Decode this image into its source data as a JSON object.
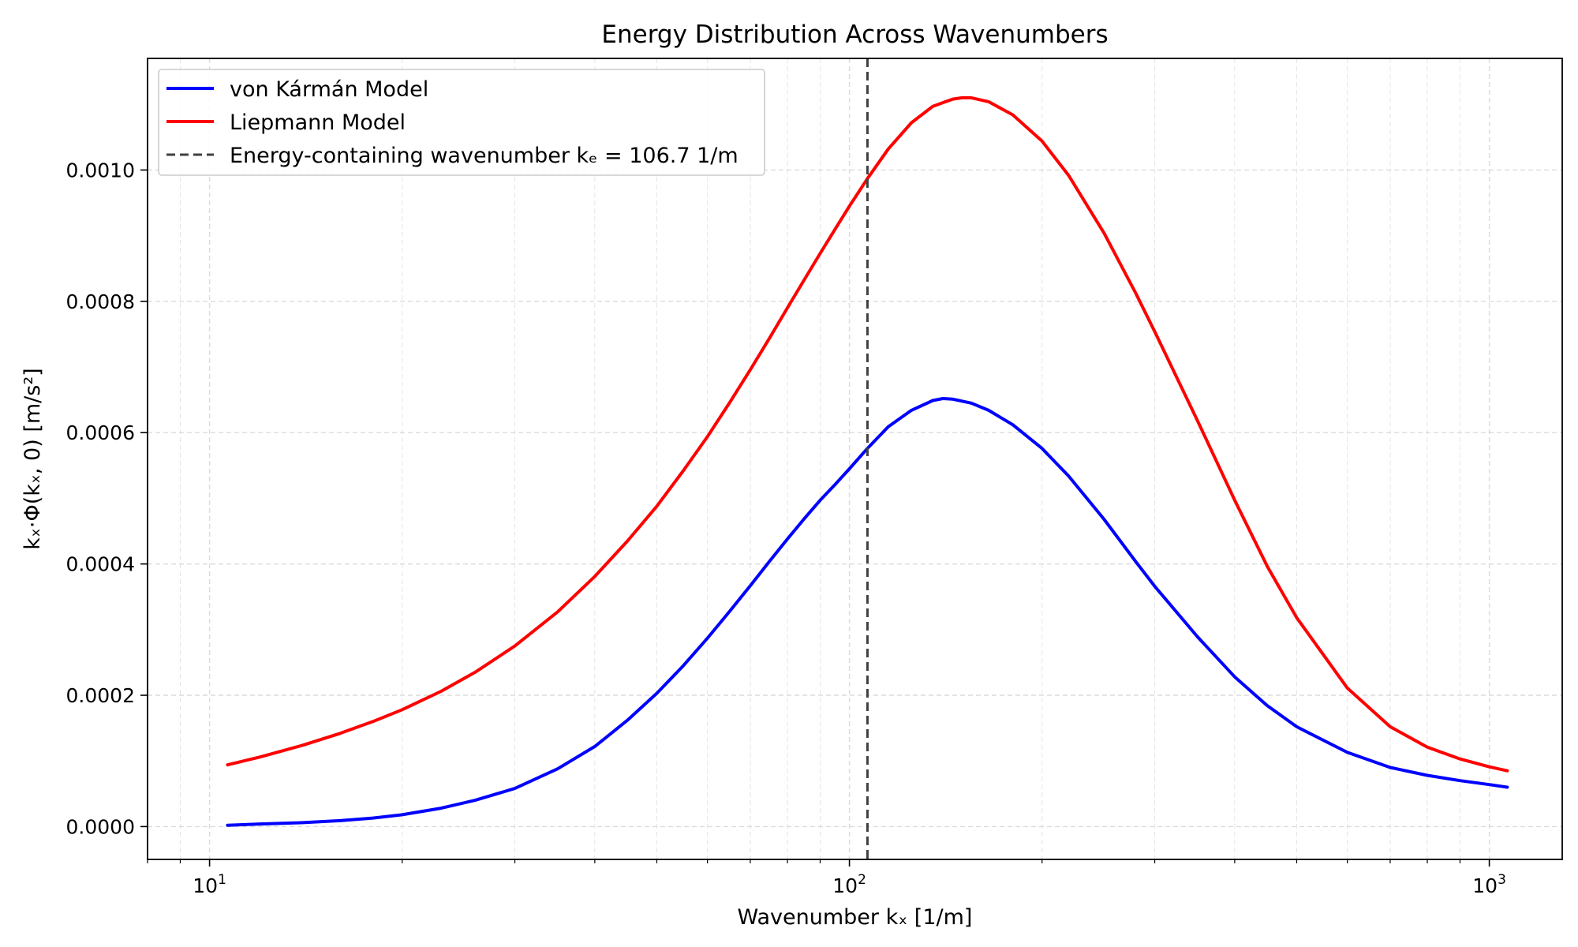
{
  "chart_data": {
    "type": "line",
    "title": "Energy Distribution Across Wavenumbers",
    "xlabel": "Wavenumber kₓ [1/m]",
    "ylabel": "kₓ·Φ(kₓ, 0) [m/s²]",
    "xscale": "log",
    "xlim": [
      8.0,
      1300
    ],
    "ylim": [
      -5e-05,
      0.00117
    ],
    "x_ticks": [
      {
        "value": 10,
        "base": "10",
        "exp": "1"
      },
      {
        "value": 100,
        "base": "10",
        "exp": "2"
      },
      {
        "value": 1000,
        "base": "10",
        "exp": "3"
      }
    ],
    "y_ticks": [
      {
        "value": 0.0,
        "label": "0.0000"
      },
      {
        "value": 0.0002,
        "label": "0.0002"
      },
      {
        "value": 0.0004,
        "label": "0.0004"
      },
      {
        "value": 0.0006,
        "label": "0.0006"
      },
      {
        "value": 0.0008,
        "label": "0.0008"
      },
      {
        "value": 0.001,
        "label": "0.0010"
      }
    ],
    "grid": true,
    "legend_position": "top-left",
    "series": [
      {
        "name": "von Kármán Model",
        "color": "#0000ff",
        "style": "solid",
        "x": [
          10.67,
          12,
          14,
          16,
          18,
          20,
          23,
          26,
          30,
          35,
          40,
          45,
          50,
          55,
          60,
          65,
          70,
          75,
          80,
          85,
          90,
          95,
          100,
          106.7,
          115,
          125,
          135,
          140,
          145,
          155,
          165,
          180,
          200,
          220,
          250,
          280,
          300,
          350,
          400,
          450,
          500,
          600,
          700,
          800,
          900,
          1000,
          1067
        ],
        "y": [
          2e-06,
          4e-06,
          6e-06,
          9e-06,
          1.3e-05,
          1.8e-05,
          2.8e-05,
          4e-05,
          5.8e-05,
          8.8e-05,
          0.000122,
          0.000162,
          0.000203,
          0.000245,
          0.000287,
          0.000328,
          0.000367,
          0.000404,
          0.000438,
          0.000469,
          0.000497,
          0.000521,
          0.000545,
          0.000576,
          0.000609,
          0.000634,
          0.000649,
          0.000652,
          0.000651,
          0.000645,
          0.000634,
          0.000612,
          0.000576,
          0.000534,
          0.000468,
          0.000404,
          0.000366,
          0.000289,
          0.000228,
          0.000184,
          0.000152,
          0.000113,
          9e-05,
          7.8e-05,
          7e-05,
          6.4e-05,
          6e-05
        ]
      },
      {
        "name": "Liepmann Model",
        "color": "#ff0000",
        "style": "solid",
        "x": [
          10.67,
          12,
          14,
          16,
          18,
          20,
          23,
          26,
          30,
          35,
          40,
          45,
          50,
          55,
          60,
          65,
          70,
          75,
          80,
          85,
          90,
          95,
          100,
          106.7,
          115,
          125,
          135,
          145,
          150,
          155,
          165,
          180,
          200,
          220,
          250,
          280,
          300,
          350,
          400,
          450,
          500,
          600,
          700,
          800,
          900,
          1000,
          1067
        ],
        "y": [
          9.4e-05,
          0.000106,
          0.000124,
          0.000142,
          0.00016,
          0.000178,
          0.000206,
          0.000235,
          0.000275,
          0.000327,
          0.000381,
          0.000435,
          0.000488,
          0.000542,
          0.000594,
          0.000646,
          0.000696,
          0.000744,
          0.00079,
          0.000833,
          0.000873,
          0.00091,
          0.000945,
          0.000987,
          0.001032,
          0.001072,
          0.001097,
          0.001108,
          0.00111,
          0.00111,
          0.001104,
          0.001084,
          0.001044,
          0.000992,
          0.000904,
          0.000813,
          0.000754,
          0.000618,
          0.000497,
          0.000396,
          0.000318,
          0.000211,
          0.000152,
          0.000121,
          0.000103,
          9.1e-05,
          8.5e-05
        ]
      },
      {
        "name": "Energy-containing wavenumber kₑ = 106.7 1/m",
        "color": "#404040",
        "style": "dashed",
        "vline_x": 106.7
      }
    ]
  }
}
